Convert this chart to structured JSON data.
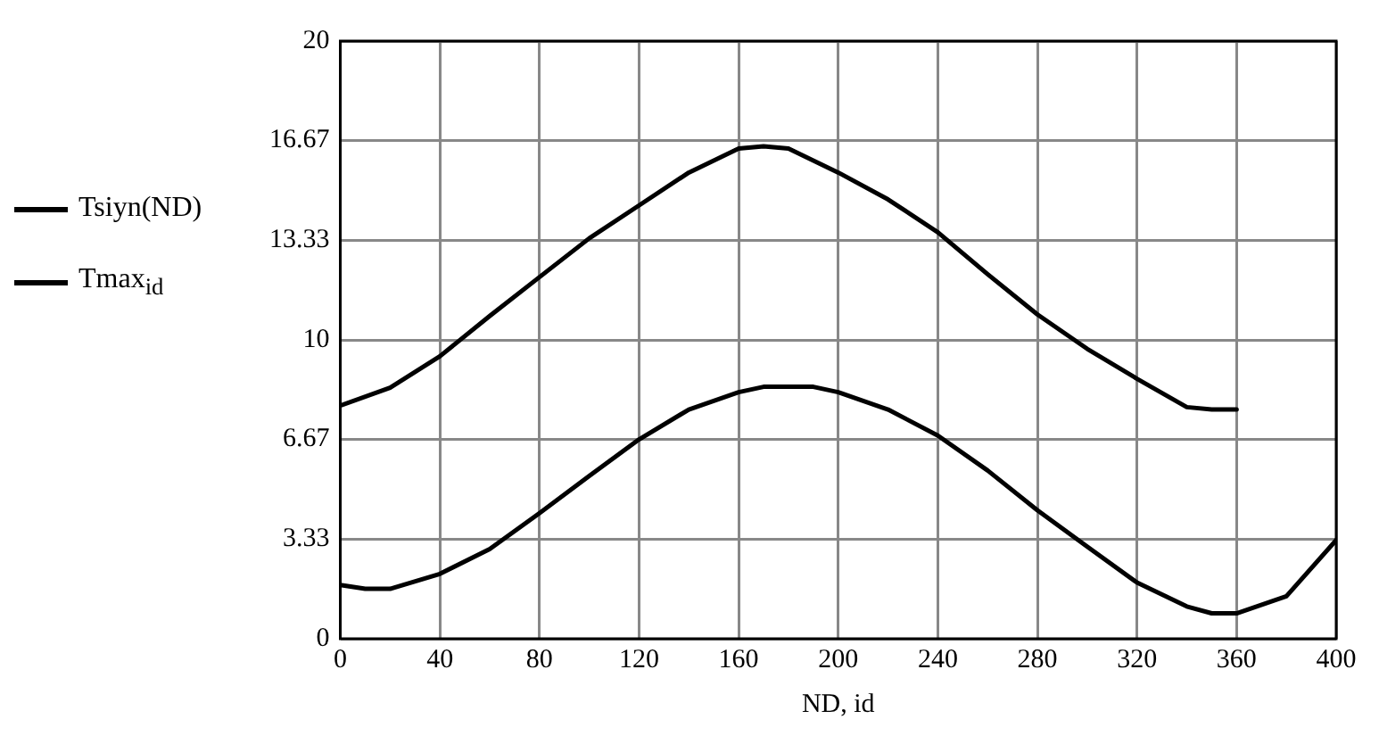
{
  "chart_data": {
    "type": "line",
    "xlabel": "ND, id",
    "xlim": [
      0,
      400
    ],
    "xticks": [
      0,
      40,
      80,
      120,
      160,
      200,
      240,
      280,
      320,
      360,
      400
    ],
    "ylim": [
      0,
      20
    ],
    "yticks": [
      0,
      3.33,
      6.67,
      10,
      13.33,
      16.67,
      20
    ],
    "grid": true,
    "legend": "left",
    "marker": "none",
    "line_style": "solid",
    "series": [
      {
        "name": "Tsiyn(ND)",
        "color": "#000000",
        "x": [
          0,
          20,
          40,
          60,
          80,
          100,
          120,
          140,
          160,
          170,
          180,
          200,
          220,
          240,
          260,
          280,
          300,
          320,
          340,
          350,
          360
        ],
        "values": [
          7.8,
          8.4,
          9.45,
          10.8,
          12.1,
          13.4,
          14.5,
          15.6,
          16.4,
          16.48,
          16.4,
          15.6,
          14.7,
          13.6,
          12.2,
          10.85,
          9.7,
          8.7,
          7.75,
          7.67,
          7.67
        ]
      },
      {
        "name": "Tmax$_{id}$",
        "color": "#000000",
        "x": [
          0,
          10,
          20,
          40,
          60,
          80,
          100,
          120,
          140,
          160,
          170,
          190,
          200,
          220,
          240,
          260,
          280,
          300,
          320,
          340,
          350,
          360,
          380,
          400
        ],
        "values": [
          1.8,
          1.67,
          1.67,
          2.17,
          3.0,
          4.2,
          5.45,
          6.67,
          7.67,
          8.25,
          8.43,
          8.43,
          8.25,
          7.67,
          6.8,
          5.63,
          4.3,
          3.08,
          1.88,
          1.08,
          0.85,
          0.85,
          1.42,
          3.3
        ]
      }
    ]
  }
}
